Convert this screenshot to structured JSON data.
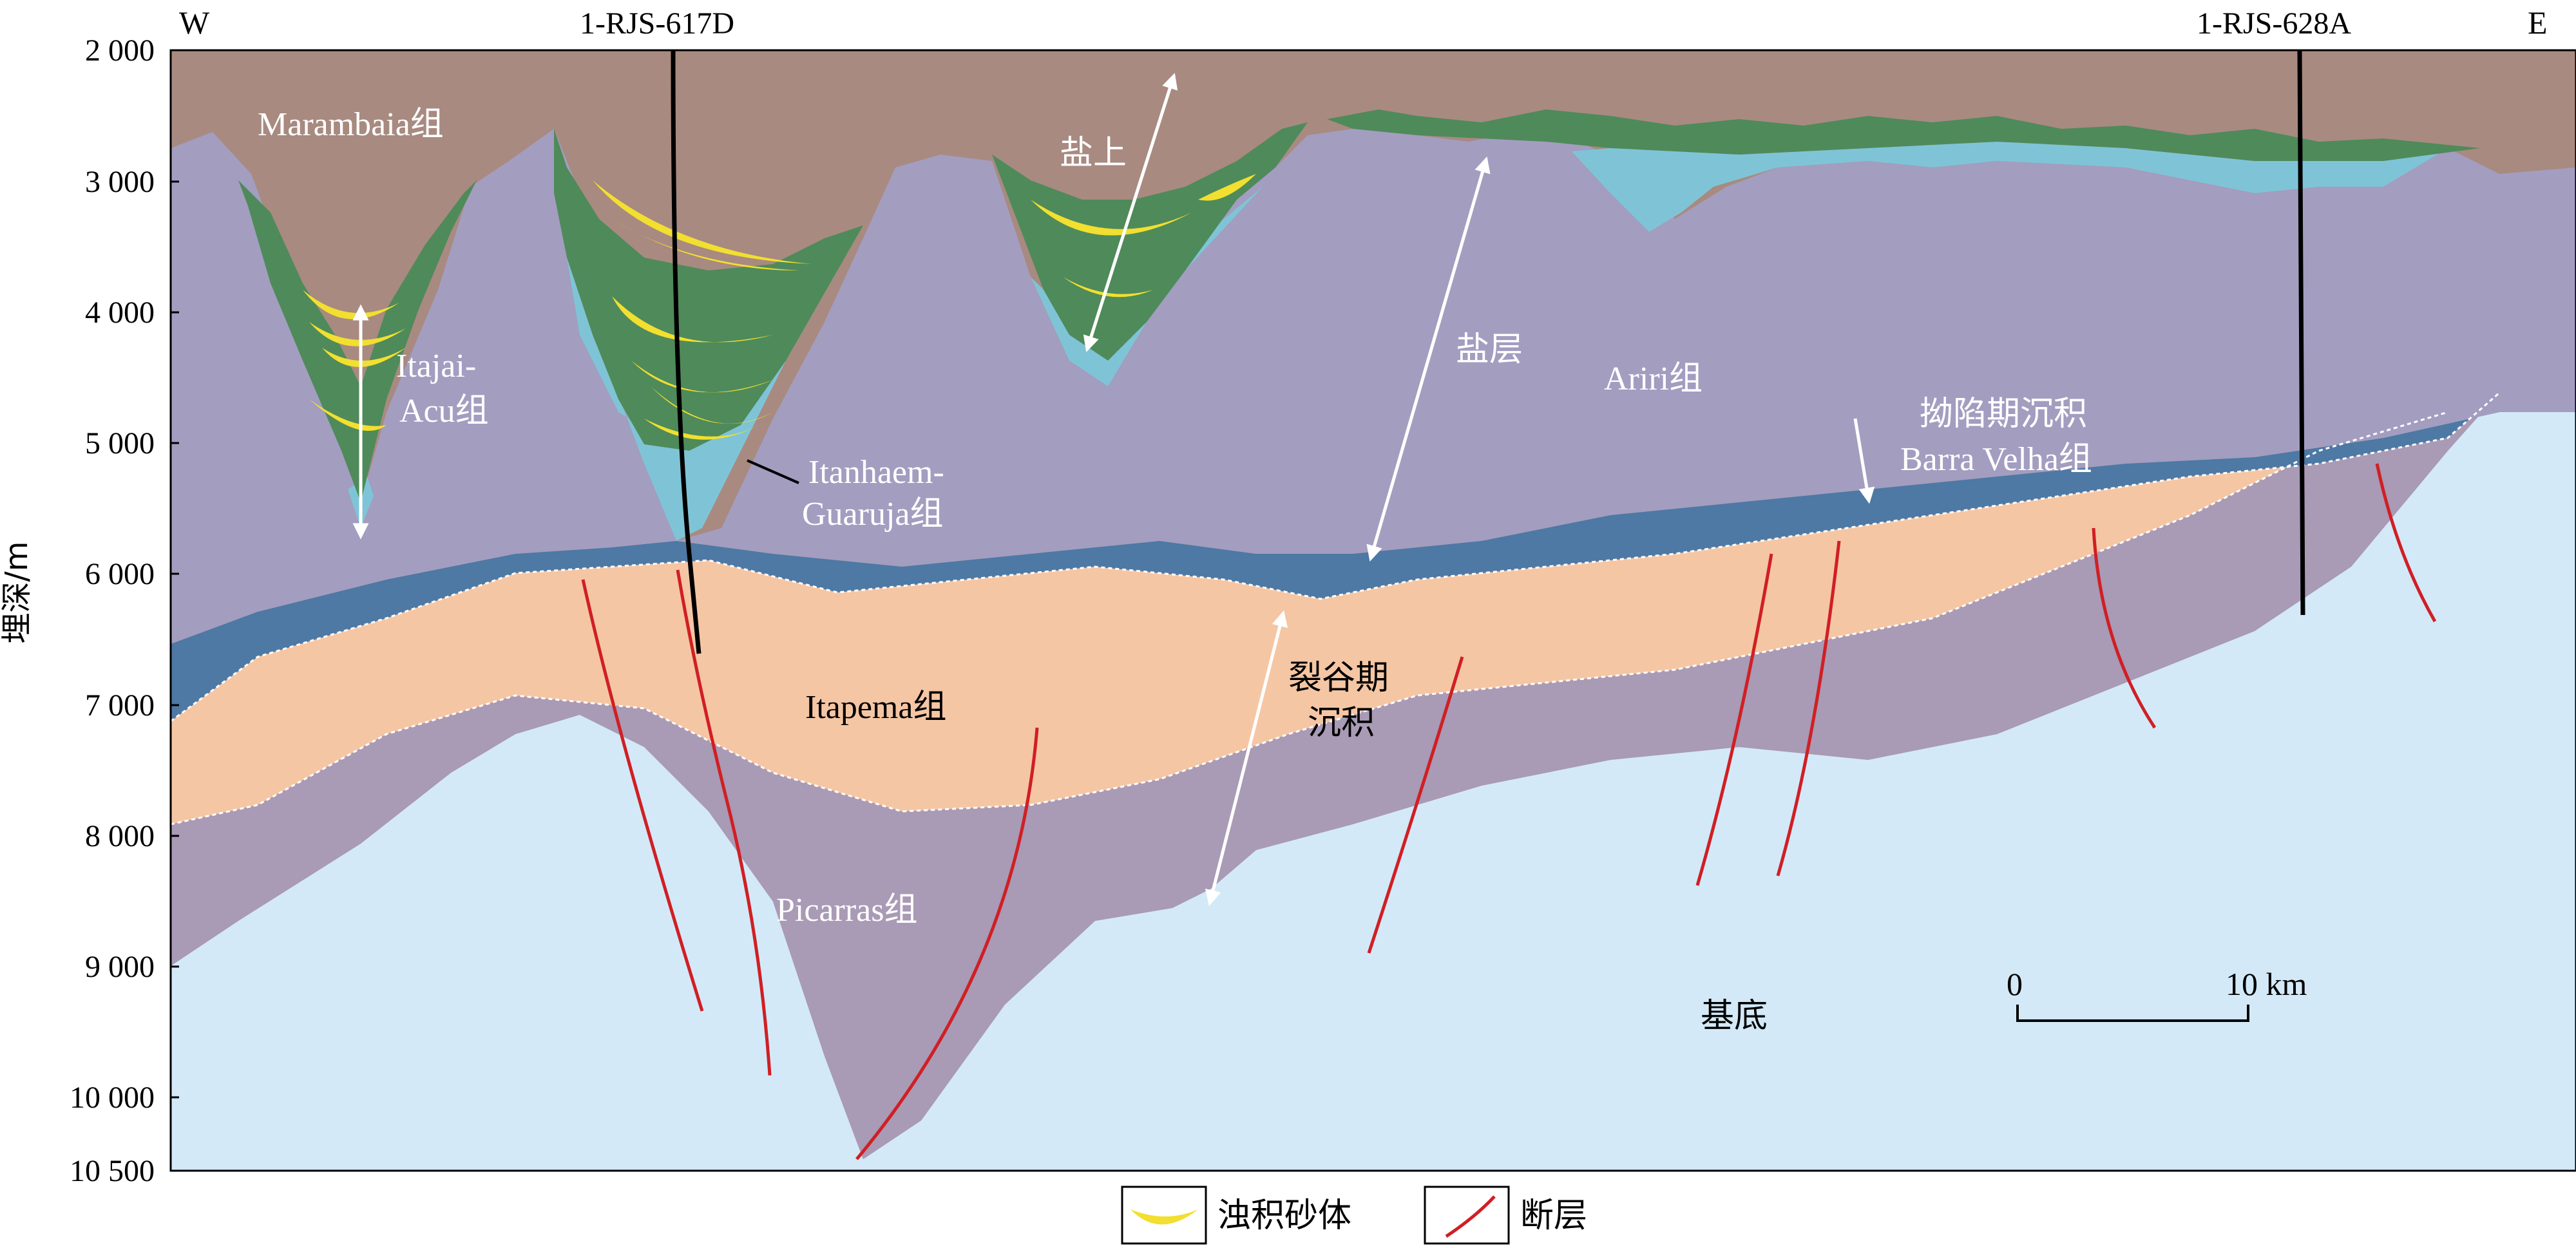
{
  "compass": {
    "west": "W",
    "east": "E"
  },
  "wells": {
    "left": "1-RJS-617D",
    "right": "1-RJS-628A"
  },
  "axis": {
    "title": "埋深/m",
    "ticks": [
      "2 000",
      "3 000",
      "4 000",
      "5 000",
      "6 000",
      "7 000",
      "8 000",
      "9 000",
      "10 000",
      "10 500"
    ]
  },
  "formations": {
    "marambaia": "Marambaia组",
    "itajai_1": "Itajai-",
    "itajai_2": "Acu组",
    "itanhaem_1": "Itanhaem-",
    "itanhaem_2": "Guaruja组",
    "ariri": "Ariri组",
    "sag_1": "拗陷期沉积",
    "sag_2": "Barra Velha组",
    "itapema": "Itapema组",
    "rift_1": "裂谷期",
    "rift_2": "沉积",
    "picarras": "Picarras组",
    "basement": "基底",
    "post_salt": "盐上",
    "salt": "盐层"
  },
  "scale": {
    "zero": "0",
    "ten": "10 km"
  },
  "legend": {
    "turbidite": "浊积砂体",
    "fault": "断层"
  },
  "colors": {
    "overburden": "#a88a80",
    "green": "#4f8a5a",
    "cyan": "#7fc4d6",
    "salt": "#a39dc0",
    "sag": "#4d79a4",
    "rift": "#f5c6a4",
    "picarras": "#a99ab5",
    "basement": "#d3e9f8",
    "sand": "#f2df2f",
    "fault": "#d01f24"
  }
}
